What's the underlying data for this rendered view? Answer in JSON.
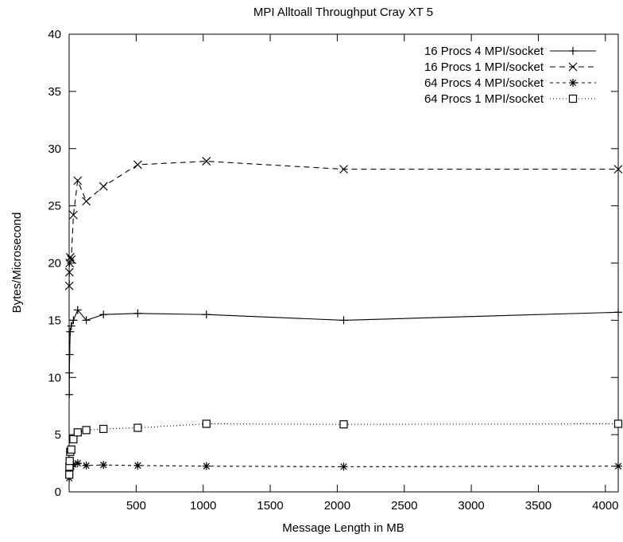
{
  "chart_data": {
    "type": "line",
    "title": "MPI Alltoall Throughput Cray XT 5",
    "xlabel": "Message Length in MB",
    "ylabel": "Bytes/Microsecond",
    "xlim": [
      0,
      4096
    ],
    "ylim": [
      0,
      40
    ],
    "xticks": [
      500,
      1000,
      1500,
      2000,
      2500,
      3000,
      3500,
      4000
    ],
    "yticks": [
      0,
      5,
      10,
      15,
      20,
      25,
      30,
      35,
      40
    ],
    "grid": false,
    "legend_position": "top-right",
    "series": [
      {
        "name": "16 Procs 4 MPI/socket",
        "marker": "plus",
        "line_style": "solid",
        "x": [
          1,
          2,
          4,
          8,
          16,
          32,
          64,
          128,
          256,
          512,
          1024,
          2048,
          4096
        ],
        "y": [
          8.5,
          10.4,
          12.0,
          14.0,
          14.5,
          15.0,
          15.9,
          15.0,
          15.5,
          15.6,
          15.5,
          15.0,
          15.7
        ]
      },
      {
        "name": "16 Procs 1 MPI/socket",
        "marker": "x",
        "line_style": "dashed",
        "x": [
          1,
          2,
          4,
          8,
          16,
          32,
          64,
          128,
          256,
          512,
          1024,
          2048,
          4096
        ],
        "y": [
          18.0,
          19.2,
          20.0,
          20.5,
          20.3,
          24.2,
          27.2,
          25.4,
          26.7,
          28.6,
          28.9,
          28.2,
          28.2
        ]
      },
      {
        "name": "64 Procs 4 MPI/socket",
        "marker": "star",
        "line_style": "short-dashed",
        "x": [
          1,
          2,
          4,
          8,
          16,
          32,
          64,
          128,
          256,
          512,
          1024,
          2048,
          4096
        ],
        "y": [
          1.2,
          1.5,
          1.8,
          2.0,
          2.2,
          2.4,
          2.5,
          2.3,
          2.35,
          2.3,
          2.25,
          2.2,
          2.25
        ]
      },
      {
        "name": "64 Procs 1 MPI/socket",
        "marker": "square",
        "line_style": "dotted",
        "x": [
          1,
          2,
          4,
          8,
          16,
          32,
          64,
          128,
          256,
          512,
          1024,
          2048,
          4096
        ],
        "y": [
          1.5,
          2.2,
          2.7,
          3.5,
          3.7,
          4.6,
          5.2,
          5.4,
          5.5,
          5.6,
          5.95,
          5.9,
          5.95
        ]
      }
    ]
  }
}
